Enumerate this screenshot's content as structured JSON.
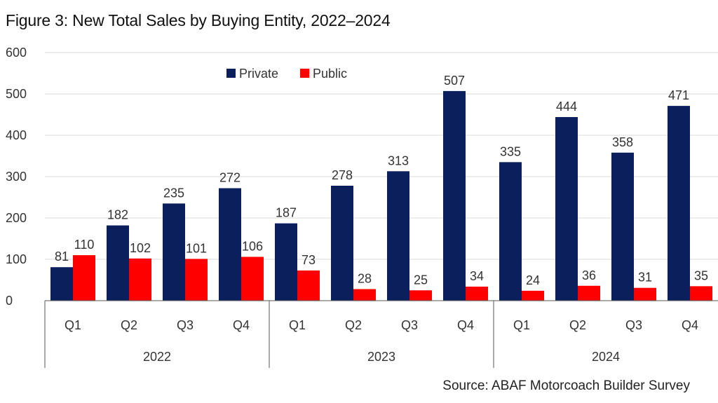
{
  "chart_data": {
    "type": "bar",
    "title": "Figure 3: New Total Sales by Buying Entity, 2022–2024",
    "source": "Source: ABAF Motorcoach Builder Survey",
    "ylim": [
      0,
      600
    ],
    "yticks": [
      0,
      100,
      200,
      300,
      400,
      500,
      600
    ],
    "grid": true,
    "legend_position": "top-center",
    "groups": [
      {
        "label": "2022",
        "quarters": [
          "Q1",
          "Q2",
          "Q3",
          "Q4"
        ]
      },
      {
        "label": "2023",
        "quarters": [
          "Q1",
          "Q2",
          "Q3",
          "Q4"
        ]
      },
      {
        "label": "2024",
        "quarters": [
          "Q1",
          "Q2",
          "Q3",
          "Q4"
        ]
      }
    ],
    "series": [
      {
        "name": "Private",
        "color": "#0b1f5c",
        "values": [
          81,
          182,
          235,
          272,
          187,
          278,
          313,
          507,
          335,
          444,
          358,
          471
        ]
      },
      {
        "name": "Public",
        "color": "#ff0000",
        "values": [
          110,
          102,
          101,
          106,
          73,
          28,
          25,
          34,
          24,
          36,
          31,
          35
        ]
      }
    ]
  }
}
